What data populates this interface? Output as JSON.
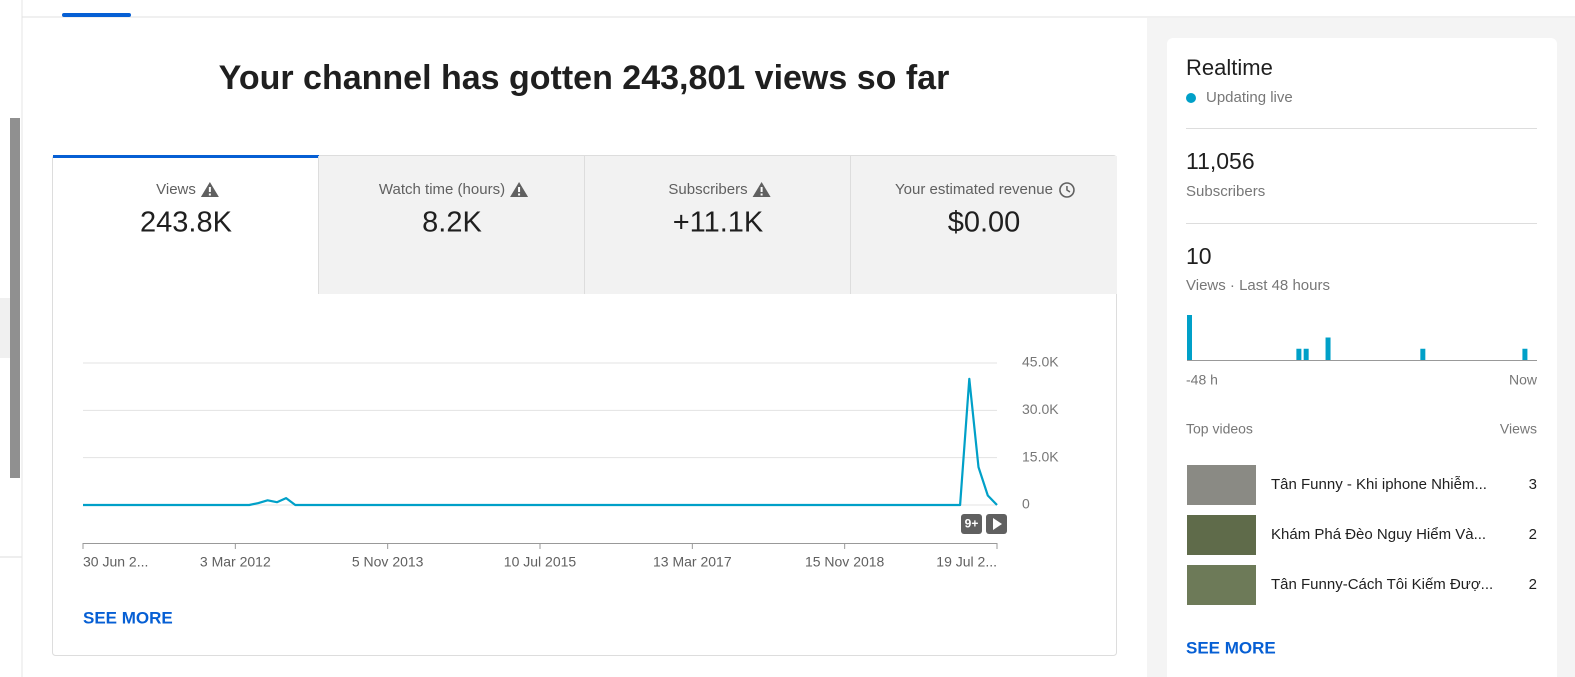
{
  "title": "Your channel has gotten 243,801 views so far",
  "tabs": [
    {
      "label": "Views",
      "value": "243.8K"
    },
    {
      "label": "Watch time (hours)",
      "value": "8.2K"
    },
    {
      "label": "Subscribers",
      "value": "+11.1K"
    },
    {
      "label": "Your estimated revenue",
      "value": "$0.00"
    }
  ],
  "chart_data": {
    "type": "line",
    "color": "#00a0c8",
    "grid": true,
    "values": [
      0,
      0,
      0,
      0,
      0,
      0,
      0,
      0,
      0,
      0,
      0,
      0,
      0,
      0,
      0,
      0,
      0,
      0,
      0,
      600,
      1500,
      900,
      2200,
      0,
      0,
      0,
      0,
      0,
      0,
      0,
      0,
      0,
      0,
      0,
      0,
      0,
      0,
      0,
      0,
      0,
      0,
      0,
      0,
      0,
      0,
      0,
      0,
      0,
      0,
      0,
      0,
      0,
      0,
      0,
      0,
      0,
      0,
      0,
      0,
      0,
      0,
      0,
      0,
      0,
      0,
      0,
      0,
      0,
      0,
      0,
      0,
      0,
      0,
      0,
      0,
      0,
      0,
      0,
      0,
      0,
      0,
      0,
      0,
      0,
      0,
      0,
      0,
      0,
      0,
      0,
      0,
      0,
      0,
      0,
      0,
      0,
      40000,
      12000,
      3000,
      0
    ],
    "x_labels": [
      "30 Jun 2...",
      "3 Mar 2012",
      "5 Nov 2013",
      "10 Jul 2015",
      "13 Mar 2017",
      "15 Nov 2018",
      "19 Jul 2..."
    ],
    "ylim": [
      0,
      45000
    ],
    "yticks": [
      0,
      {
        "value": 15000,
        "label": "15.0K"
      },
      {
        "value": 30000,
        "label": "30.0K"
      },
      {
        "value": 45000,
        "label": "45.0K"
      }
    ],
    "badge": "9+"
  },
  "see_more": "SEE MORE",
  "realtime": {
    "title": "Realtime",
    "status": "Updating live",
    "subscribers": {
      "value": "11,056",
      "label": "Subscribers"
    },
    "views": {
      "value": "10",
      "label": "Views · Last 48 hours"
    },
    "chart": {
      "type": "bar",
      "color": "#00a0c8",
      "values": [
        4,
        0,
        0,
        0,
        0,
        0,
        0,
        0,
        0,
        0,
        0,
        0,
        0,
        0,
        0,
        1,
        1,
        0,
        0,
        2,
        0,
        0,
        0,
        0,
        0,
        0,
        0,
        0,
        0,
        0,
        0,
        0,
        1,
        0,
        0,
        0,
        0,
        0,
        0,
        0,
        0,
        0,
        0,
        0,
        0,
        0,
        1,
        0
      ],
      "start_label": "-48 h",
      "end_label": "Now"
    },
    "top_videos": {
      "header": "Top videos",
      "views_header": "Views",
      "rows": [
        {
          "title": "Tân Funny - Khi iphone Nhiễm...",
          "views": "3"
        },
        {
          "title": "Khám Phá Đèo Nguy Hiểm Và...",
          "views": "2"
        },
        {
          "title": "Tân Funny-Cách Tôi Kiếm Đượ...",
          "views": "2"
        }
      ]
    },
    "see_more": "SEE MORE"
  }
}
